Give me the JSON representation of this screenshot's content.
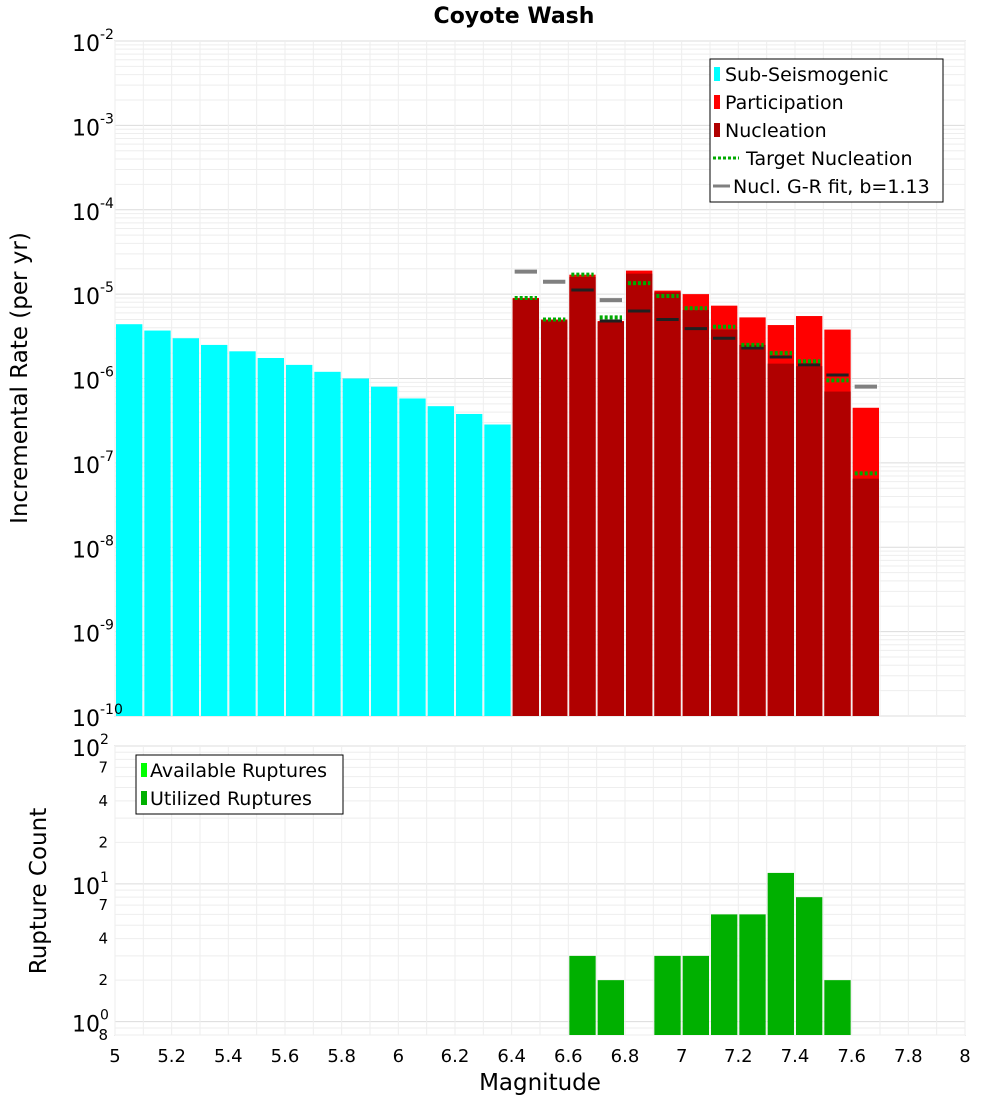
{
  "colors": {
    "sub_seismogenic": "#00ffff",
    "participation": "#ff0000",
    "nucleation": "#b00000",
    "target_nucleation": "#00aa00",
    "gr_fit": "#808080",
    "nucl_tick": "#202020",
    "available": "#00ff00",
    "utilized": "#00b000"
  },
  "chart_data": [
    {
      "type": "bar",
      "title": "Coyote Wash",
      "ylabel": "Incremental Rate (per yr)",
      "xlabel": "",
      "xlim": [
        5,
        8
      ],
      "ylim_log10": [
        -10,
        -2
      ],
      "y_scale": "log",
      "y_tick_labels": [
        {
          "exp": -2,
          "base": "10",
          "sup": "-2"
        },
        {
          "exp": -3,
          "base": "10",
          "sup": "-3"
        },
        {
          "exp": -4,
          "base": "10",
          "sup": "-4"
        },
        {
          "exp": -5,
          "base": "10",
          "sup": "-5"
        },
        {
          "exp": -6,
          "base": "10",
          "sup": "-6"
        },
        {
          "exp": -7,
          "base": "10",
          "sup": "-7"
        },
        {
          "exp": -8,
          "base": "10",
          "sup": "-8"
        },
        {
          "exp": -9,
          "base": "10",
          "sup": "-9"
        },
        {
          "exp": -10,
          "base": "10",
          "sup": "-10"
        }
      ],
      "bin_width": 0.1,
      "legend": {
        "placement": "top-right",
        "entries": [
          {
            "label": "Sub-Seismogenic",
            "kind": "box",
            "color_key": "sub_seismogenic"
          },
          {
            "label": "Participation",
            "kind": "box",
            "color_key": "participation"
          },
          {
            "label": "Nucleation",
            "kind": "box",
            "color_key": "nucleation"
          },
          {
            "label": "Target Nucleation",
            "kind": "dotted",
            "color_key": "target_nucleation"
          },
          {
            "label": "Nucl. G-R fit, b=1.13",
            "kind": "line",
            "color_key": "gr_fit"
          }
        ]
      },
      "series": [
        {
          "name": "Sub-Seismogenic",
          "x": [
            5.05,
            5.15,
            5.25,
            5.35,
            5.45,
            5.55,
            5.65,
            5.75,
            5.85,
            5.95,
            6.05,
            6.15,
            6.25,
            6.35
          ],
          "values": [
            4.4e-06,
            3.7e-06,
            3e-06,
            2.5e-06,
            2.1e-06,
            1.75e-06,
            1.45e-06,
            1.2e-06,
            1e-06,
            8e-07,
            5.8e-07,
            4.7e-07,
            3.8e-07,
            2.85e-07
          ]
        },
        {
          "name": "Participation",
          "x": [
            6.45,
            6.55,
            6.65,
            6.75,
            6.85,
            6.95,
            7.05,
            7.15,
            7.25,
            7.35,
            7.45,
            7.55,
            7.65
          ],
          "values": [
            9e-06,
            5e-06,
            1.7e-05,
            4.8e-06,
            1.9e-05,
            1.1e-05,
            1e-05,
            7.3e-06,
            5.3e-06,
            4.3e-06,
            5.5e-06,
            3.8e-06,
            4.5e-07
          ]
        },
        {
          "name": "Nucleation",
          "x": [
            6.45,
            6.55,
            6.65,
            6.75,
            6.85,
            6.95,
            7.05,
            7.15,
            7.25,
            7.35,
            7.45,
            7.55,
            7.65
          ],
          "values": [
            8.8e-06,
            4.9e-06,
            1.6e-05,
            4.7e-06,
            1.75e-05,
            1.05e-05,
            6.5e-06,
            3.8e-06,
            2.5e-06,
            1.5e-06,
            1.4e-06,
            7e-07,
            6.5e-08
          ]
        },
        {
          "name": "Nucleation tick marks",
          "x": [
            6.65,
            6.75,
            6.85,
            6.95,
            7.05,
            7.15,
            7.25,
            7.35,
            7.45,
            7.55
          ],
          "values": [
            1.12e-05,
            4.8e-06,
            6.3e-06,
            5e-06,
            3.9e-06,
            3e-06,
            2.3e-06,
            1.8e-06,
            1.45e-06,
            1.1e-06
          ]
        },
        {
          "name": "Target Nucleation",
          "x": [
            6.45,
            6.55,
            6.65,
            6.75,
            6.85,
            6.95,
            7.05,
            7.15,
            7.25,
            7.35,
            7.45,
            7.55,
            7.65
          ],
          "values": [
            9e-06,
            5e-06,
            1.7e-05,
            5.3e-06,
            1.35e-05,
            9.5e-06,
            6.8e-06,
            4.1e-06,
            2.5e-06,
            2e-06,
            1.6e-06,
            9.5e-07,
            7.5e-08
          ]
        },
        {
          "name": "Nucl. G-R fit, b=1.13",
          "x": [
            6.45,
            6.55,
            6.75,
            7.65
          ],
          "values": [
            1.85e-05,
            1.4e-05,
            8.5e-06,
            8e-07
          ]
        }
      ]
    },
    {
      "type": "bar",
      "title": "",
      "ylabel": "Rupture Count",
      "xlabel": "Magnitude",
      "xlim": [
        5,
        8
      ],
      "x_ticks": [
        5,
        5.2,
        5.4,
        5.6,
        5.8,
        6,
        6.2,
        6.4,
        6.6,
        6.8,
        7,
        7.2,
        7.4,
        7.6,
        7.8,
        8
      ],
      "x_tick_labels": [
        "5",
        "5.2",
        "5.4",
        "5.6",
        "5.8",
        "6",
        "6.2",
        "6.4",
        "6.6",
        "6.8",
        "7",
        "7.2",
        "7.4",
        "7.6",
        "7.8",
        "8"
      ],
      "y_scale": "log",
      "ylim": [
        0.8,
        100
      ],
      "y_major_labels": [
        {
          "value": 100,
          "base": "10",
          "sup": "2"
        },
        {
          "value": 10,
          "base": "10",
          "sup": "1"
        },
        {
          "value": 1,
          "base": "10",
          "sup": "0"
        }
      ],
      "y_minor_labels": [
        {
          "value": 70,
          "label": "7"
        },
        {
          "value": 40,
          "label": "4"
        },
        {
          "value": 20,
          "label": "2"
        },
        {
          "value": 7,
          "label": "7"
        },
        {
          "value": 4,
          "label": "4"
        },
        {
          "value": 2,
          "label": "2"
        },
        {
          "value": 0.8,
          "label": "8"
        }
      ],
      "legend": {
        "placement": "top-left",
        "entries": [
          {
            "label": "Available Ruptures",
            "kind": "box",
            "color_key": "available"
          },
          {
            "label": "Utilized Ruptures",
            "kind": "box",
            "color_key": "utilized"
          }
        ]
      },
      "series": [
        {
          "name": "Utilized Ruptures",
          "x": [
            6.65,
            6.75,
            6.95,
            7.05,
            7.15,
            7.25,
            7.35,
            7.45,
            7.55
          ],
          "values": [
            3,
            2,
            3,
            3,
            6,
            6,
            12,
            8,
            2
          ]
        }
      ]
    }
  ]
}
